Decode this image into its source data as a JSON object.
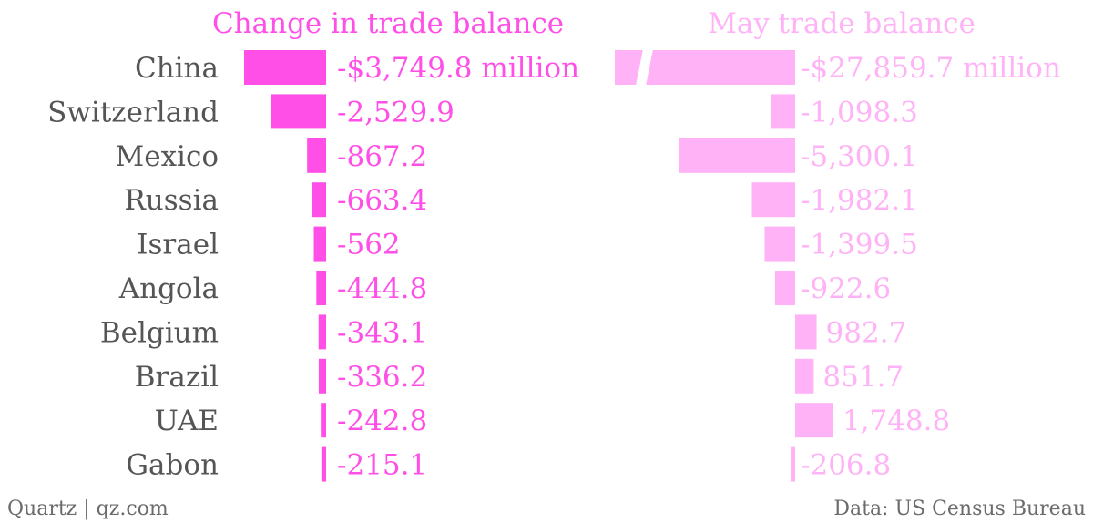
{
  "chart_data": [
    {
      "type": "bar",
      "orientation": "horizontal",
      "title": "Change in trade balance",
      "color": "#ff4fe7",
      "categories": [
        "China",
        "Switzerland",
        "Mexico",
        "Russia",
        "Israel",
        "Angola",
        "Belgium",
        "Brazil",
        "UAE",
        "Gabon"
      ],
      "values": [
        -3749.8,
        -2529.9,
        -867.2,
        -663.4,
        -562,
        -444.8,
        -343.1,
        -336.2,
        -242.8,
        -215.1
      ],
      "labels": [
        "-$3,749.8 million",
        "-2,529.9",
        "-867.2",
        "-663.4",
        "-562",
        "-444.8",
        "-343.1",
        "-336.2",
        "-242.8",
        "-215.1"
      ],
      "unit": "million"
    },
    {
      "type": "bar",
      "orientation": "horizontal",
      "title": "May trade balance",
      "color": "#ffb3f6",
      "categories": [
        "China",
        "Switzerland",
        "Mexico",
        "Russia",
        "Israel",
        "Angola",
        "Belgium",
        "Brazil",
        "UAE",
        "Gabon"
      ],
      "values": [
        -27859.7,
        -1098.3,
        -5300.1,
        -1982.1,
        -1399.5,
        -922.6,
        982.7,
        851.7,
        1748.8,
        -206.8
      ],
      "labels": [
        "-$27,859.7 million",
        "-1,098.3",
        "-5,300.1",
        "-1,982.1",
        "-1,399.5",
        "-922.6",
        "982.7",
        "851.7",
        "1,748.8",
        "-206.8"
      ],
      "unit": "million",
      "axis_break": "China bar truncated with a diagonal break"
    }
  ],
  "footer": {
    "source_left": "Quartz | qz.com",
    "source_right": "Data: US Census Bureau"
  },
  "colors": {
    "label_text": "#555555",
    "footer_text": "#6b6b6b"
  }
}
